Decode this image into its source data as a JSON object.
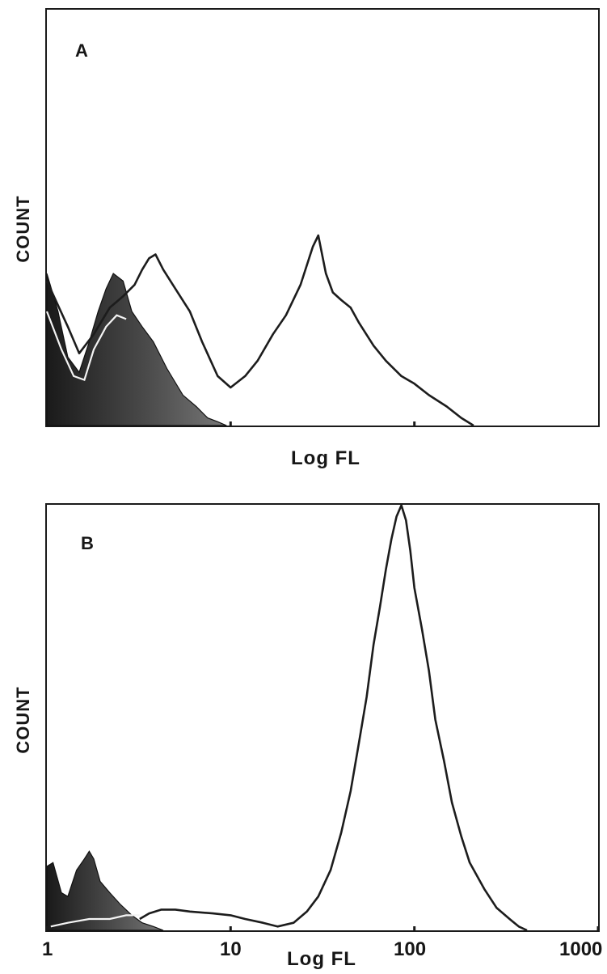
{
  "chart_data": [
    {
      "type": "area",
      "panel_label": "A",
      "xlabel": "Log FL",
      "ylabel": "COUNT",
      "x_scale": "log",
      "xlim": [
        1,
        1000
      ],
      "grid": false,
      "series": [
        {
          "style": "filled-dark",
          "x": [
            1,
            1.15,
            1.3,
            1.5,
            1.7,
            1.9,
            2.1,
            2.3,
            2.6,
            2.9,
            3.3,
            3.8,
            4.5,
            5.5,
            6.5,
            7.5,
            8.5,
            9.5
          ],
          "y": [
            0.4,
            0.3,
            0.18,
            0.14,
            0.22,
            0.3,
            0.36,
            0.4,
            0.38,
            0.3,
            0.26,
            0.22,
            0.15,
            0.08,
            0.05,
            0.02,
            0.01,
            0
          ]
        },
        {
          "style": "white-line",
          "x": [
            1,
            1.2,
            1.4,
            1.6,
            1.8,
            2.1,
            2.4,
            2.7
          ],
          "y": [
            0.3,
            0.2,
            0.13,
            0.12,
            0.2,
            0.26,
            0.29,
            0.28
          ]
        },
        {
          "style": "line",
          "x": [
            1,
            1.3,
            1.5,
            1.8,
            2.2,
            2.6,
            3.0,
            3.3,
            3.6,
            3.9,
            4.3,
            5.0,
            6.0,
            7.0,
            8.5,
            10,
            12,
            14,
            17,
            20,
            24,
            28,
            30,
            33,
            36,
            40,
            45,
            50,
            60,
            70,
            85,
            100,
            120,
            150,
            180,
            210
          ],
          "y": [
            0.38,
            0.26,
            0.19,
            0.24,
            0.31,
            0.34,
            0.37,
            0.41,
            0.44,
            0.45,
            0.41,
            0.36,
            0.3,
            0.22,
            0.13,
            0.1,
            0.13,
            0.17,
            0.24,
            0.29,
            0.37,
            0.47,
            0.5,
            0.4,
            0.35,
            0.33,
            0.31,
            0.27,
            0.21,
            0.17,
            0.13,
            0.11,
            0.08,
            0.05,
            0.02,
            0
          ]
        }
      ],
      "x_tick_marks": [
        10,
        100
      ]
    },
    {
      "type": "area",
      "panel_label": "B",
      "xlabel": "Log FL",
      "ylabel": "COUNT",
      "x_scale": "log",
      "xlim": [
        1,
        1000
      ],
      "x_ticks": [
        1,
        10,
        100,
        1000
      ],
      "x_tick_labels": [
        "1",
        "10",
        "100",
        "1000"
      ],
      "grid": false,
      "series": [
        {
          "style": "filled-dark",
          "x": [
            1,
            1.08,
            1.2,
            1.3,
            1.45,
            1.6,
            1.7,
            1.8,
            1.95,
            2.2,
            2.5,
            2.9,
            3.3,
            3.8,
            4.3
          ],
          "y": [
            0.17,
            0.18,
            0.1,
            0.09,
            0.16,
            0.19,
            0.21,
            0.19,
            0.13,
            0.1,
            0.07,
            0.04,
            0.02,
            0.01,
            0
          ]
        },
        {
          "style": "white-line",
          "x": [
            1.05,
            1.3,
            1.7,
            2.2,
            2.7,
            3.2
          ],
          "y": [
            0.01,
            0.02,
            0.03,
            0.03,
            0.04,
            0.04
          ]
        },
        {
          "style": "line",
          "x": [
            3.2,
            3.6,
            4.2,
            5.0,
            6.0,
            8.0,
            10,
            12,
            15,
            18,
            22,
            26,
            30,
            35,
            40,
            45,
            50,
            55,
            60,
            65,
            70,
            75,
            80,
            85,
            90,
            95,
            100,
            110,
            120,
            130,
            145,
            160,
            180,
            200,
            240,
            280,
            330,
            370,
            410
          ],
          "y": [
            0.03,
            0.045,
            0.055,
            0.055,
            0.05,
            0.045,
            0.04,
            0.03,
            0.02,
            0.01,
            0.02,
            0.05,
            0.09,
            0.16,
            0.26,
            0.37,
            0.5,
            0.62,
            0.76,
            0.86,
            0.96,
            1.04,
            1.1,
            1.13,
            1.09,
            1.01,
            0.91,
            0.8,
            0.69,
            0.56,
            0.45,
            0.34,
            0.25,
            0.18,
            0.11,
            0.06,
            0.03,
            0.01,
            0
          ]
        }
      ]
    }
  ]
}
